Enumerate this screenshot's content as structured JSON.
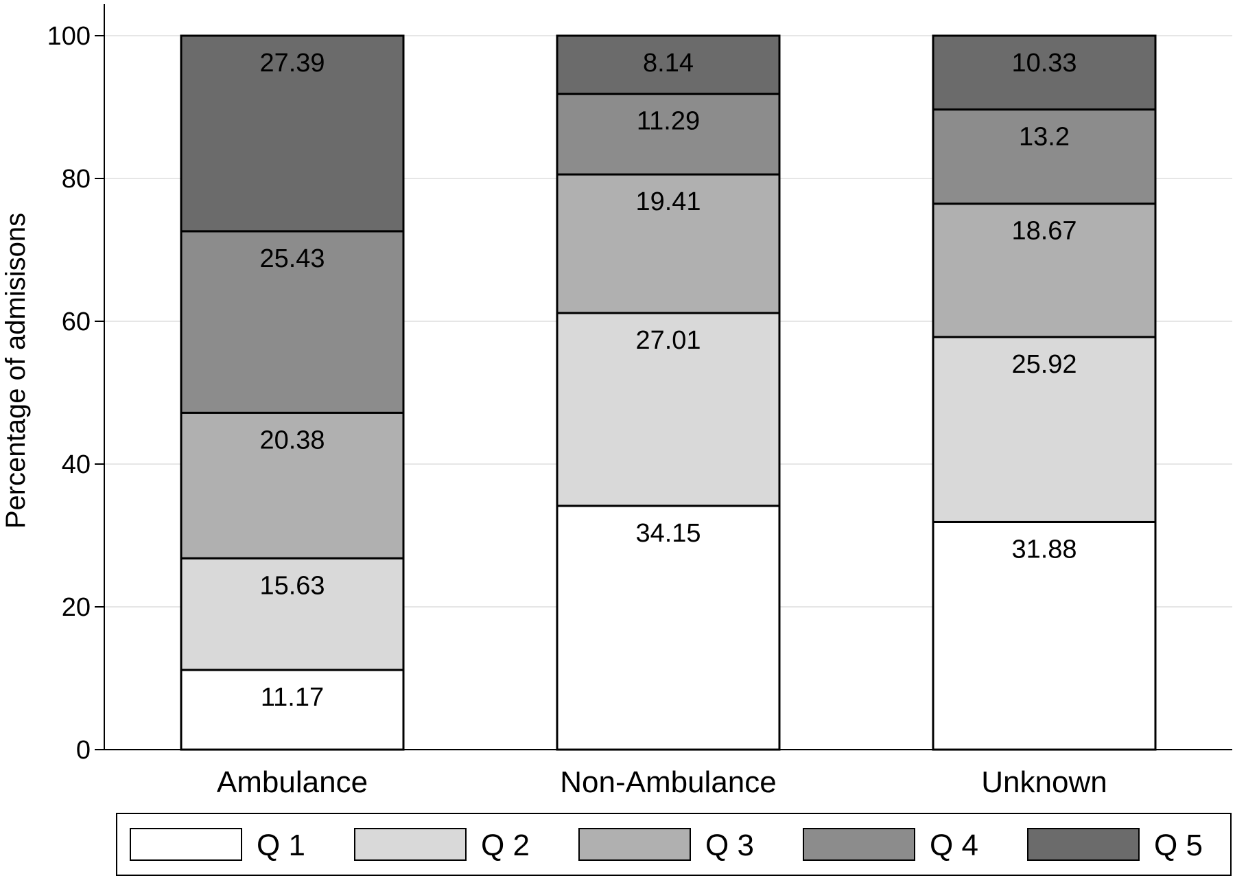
{
  "chart_data": {
    "type": "bar",
    "stacked": true,
    "ylabel": "Percentage of admisisons",
    "xlabel": "",
    "ylim": [
      0,
      100
    ],
    "yticks": [
      "0",
      "20",
      "40",
      "60",
      "80",
      "100"
    ],
    "grid": true,
    "legend_position": "bottom",
    "categories": [
      "Ambulance",
      "Non-Ambulance",
      "Unknown"
    ],
    "series": [
      {
        "name": "Q 1",
        "color": "#ffffff",
        "values": [
          11.17,
          34.15,
          31.88
        ],
        "labels": [
          "11.17",
          "34.15",
          "31.88"
        ]
      },
      {
        "name": "Q 2",
        "color": "#d9d9d9",
        "values": [
          15.63,
          27.01,
          25.92
        ],
        "labels": [
          "15.63",
          "27.01",
          "25.92"
        ]
      },
      {
        "name": "Q 3",
        "color": "#b0b0b0",
        "values": [
          20.38,
          19.41,
          18.67
        ],
        "labels": [
          "20.38",
          "19.41",
          "18.67"
        ]
      },
      {
        "name": "Q 4",
        "color": "#8c8c8c",
        "values": [
          25.43,
          11.29,
          13.2
        ],
        "labels": [
          "25.43",
          "11.29",
          "13.2"
        ]
      },
      {
        "name": "Q 5",
        "color": "#6b6b6b",
        "values": [
          27.39,
          8.14,
          10.33
        ],
        "labels": [
          "27.39",
          "8.14",
          "10.33"
        ]
      }
    ]
  }
}
